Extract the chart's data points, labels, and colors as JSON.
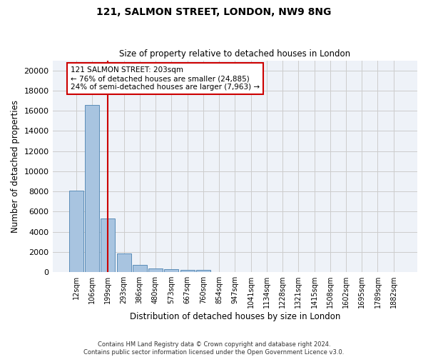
{
  "title": "121, SALMON STREET, LONDON, NW9 8NG",
  "subtitle": "Size of property relative to detached houses in London",
  "xlabel": "Distribution of detached houses by size in London",
  "ylabel": "Number of detached properties",
  "footer_line1": "Contains HM Land Registry data © Crown copyright and database right 2024.",
  "footer_line2": "Contains public sector information licensed under the Open Government Licence v3.0.",
  "annotation_title": "121 SALMON STREET: 203sqm",
  "annotation_line2": "← 76% of detached houses are smaller (24,885)",
  "annotation_line3": "24% of semi-detached houses are larger (7,963) →",
  "bar_color": "#a8c4e0",
  "bar_edge_color": "#5b8db8",
  "property_line_color": "#cc0000",
  "annotation_box_color": "#cc0000",
  "grid_color": "#cccccc",
  "bg_color": "#eef2f8",
  "categories": [
    "12sqm",
    "106sqm",
    "199sqm",
    "293sqm",
    "386sqm",
    "480sqm",
    "573sqm",
    "667sqm",
    "760sqm",
    "854sqm",
    "947sqm",
    "1041sqm",
    "1134sqm",
    "1228sqm",
    "1321sqm",
    "1415sqm",
    "1508sqm",
    "1602sqm",
    "1695sqm",
    "1789sqm",
    "1882sqm"
  ],
  "bar_heights": [
    8100,
    16600,
    5300,
    1850,
    700,
    350,
    270,
    210,
    200,
    0,
    0,
    0,
    0,
    0,
    0,
    0,
    0,
    0,
    0,
    0,
    0
  ],
  "ylim": [
    0,
    21000
  ],
  "yticks": [
    0,
    2000,
    4000,
    6000,
    8000,
    10000,
    12000,
    14000,
    16000,
    18000,
    20000
  ],
  "property_line_idx": 2.0,
  "figsize": [
    6.0,
    5.0
  ],
  "dpi": 100
}
